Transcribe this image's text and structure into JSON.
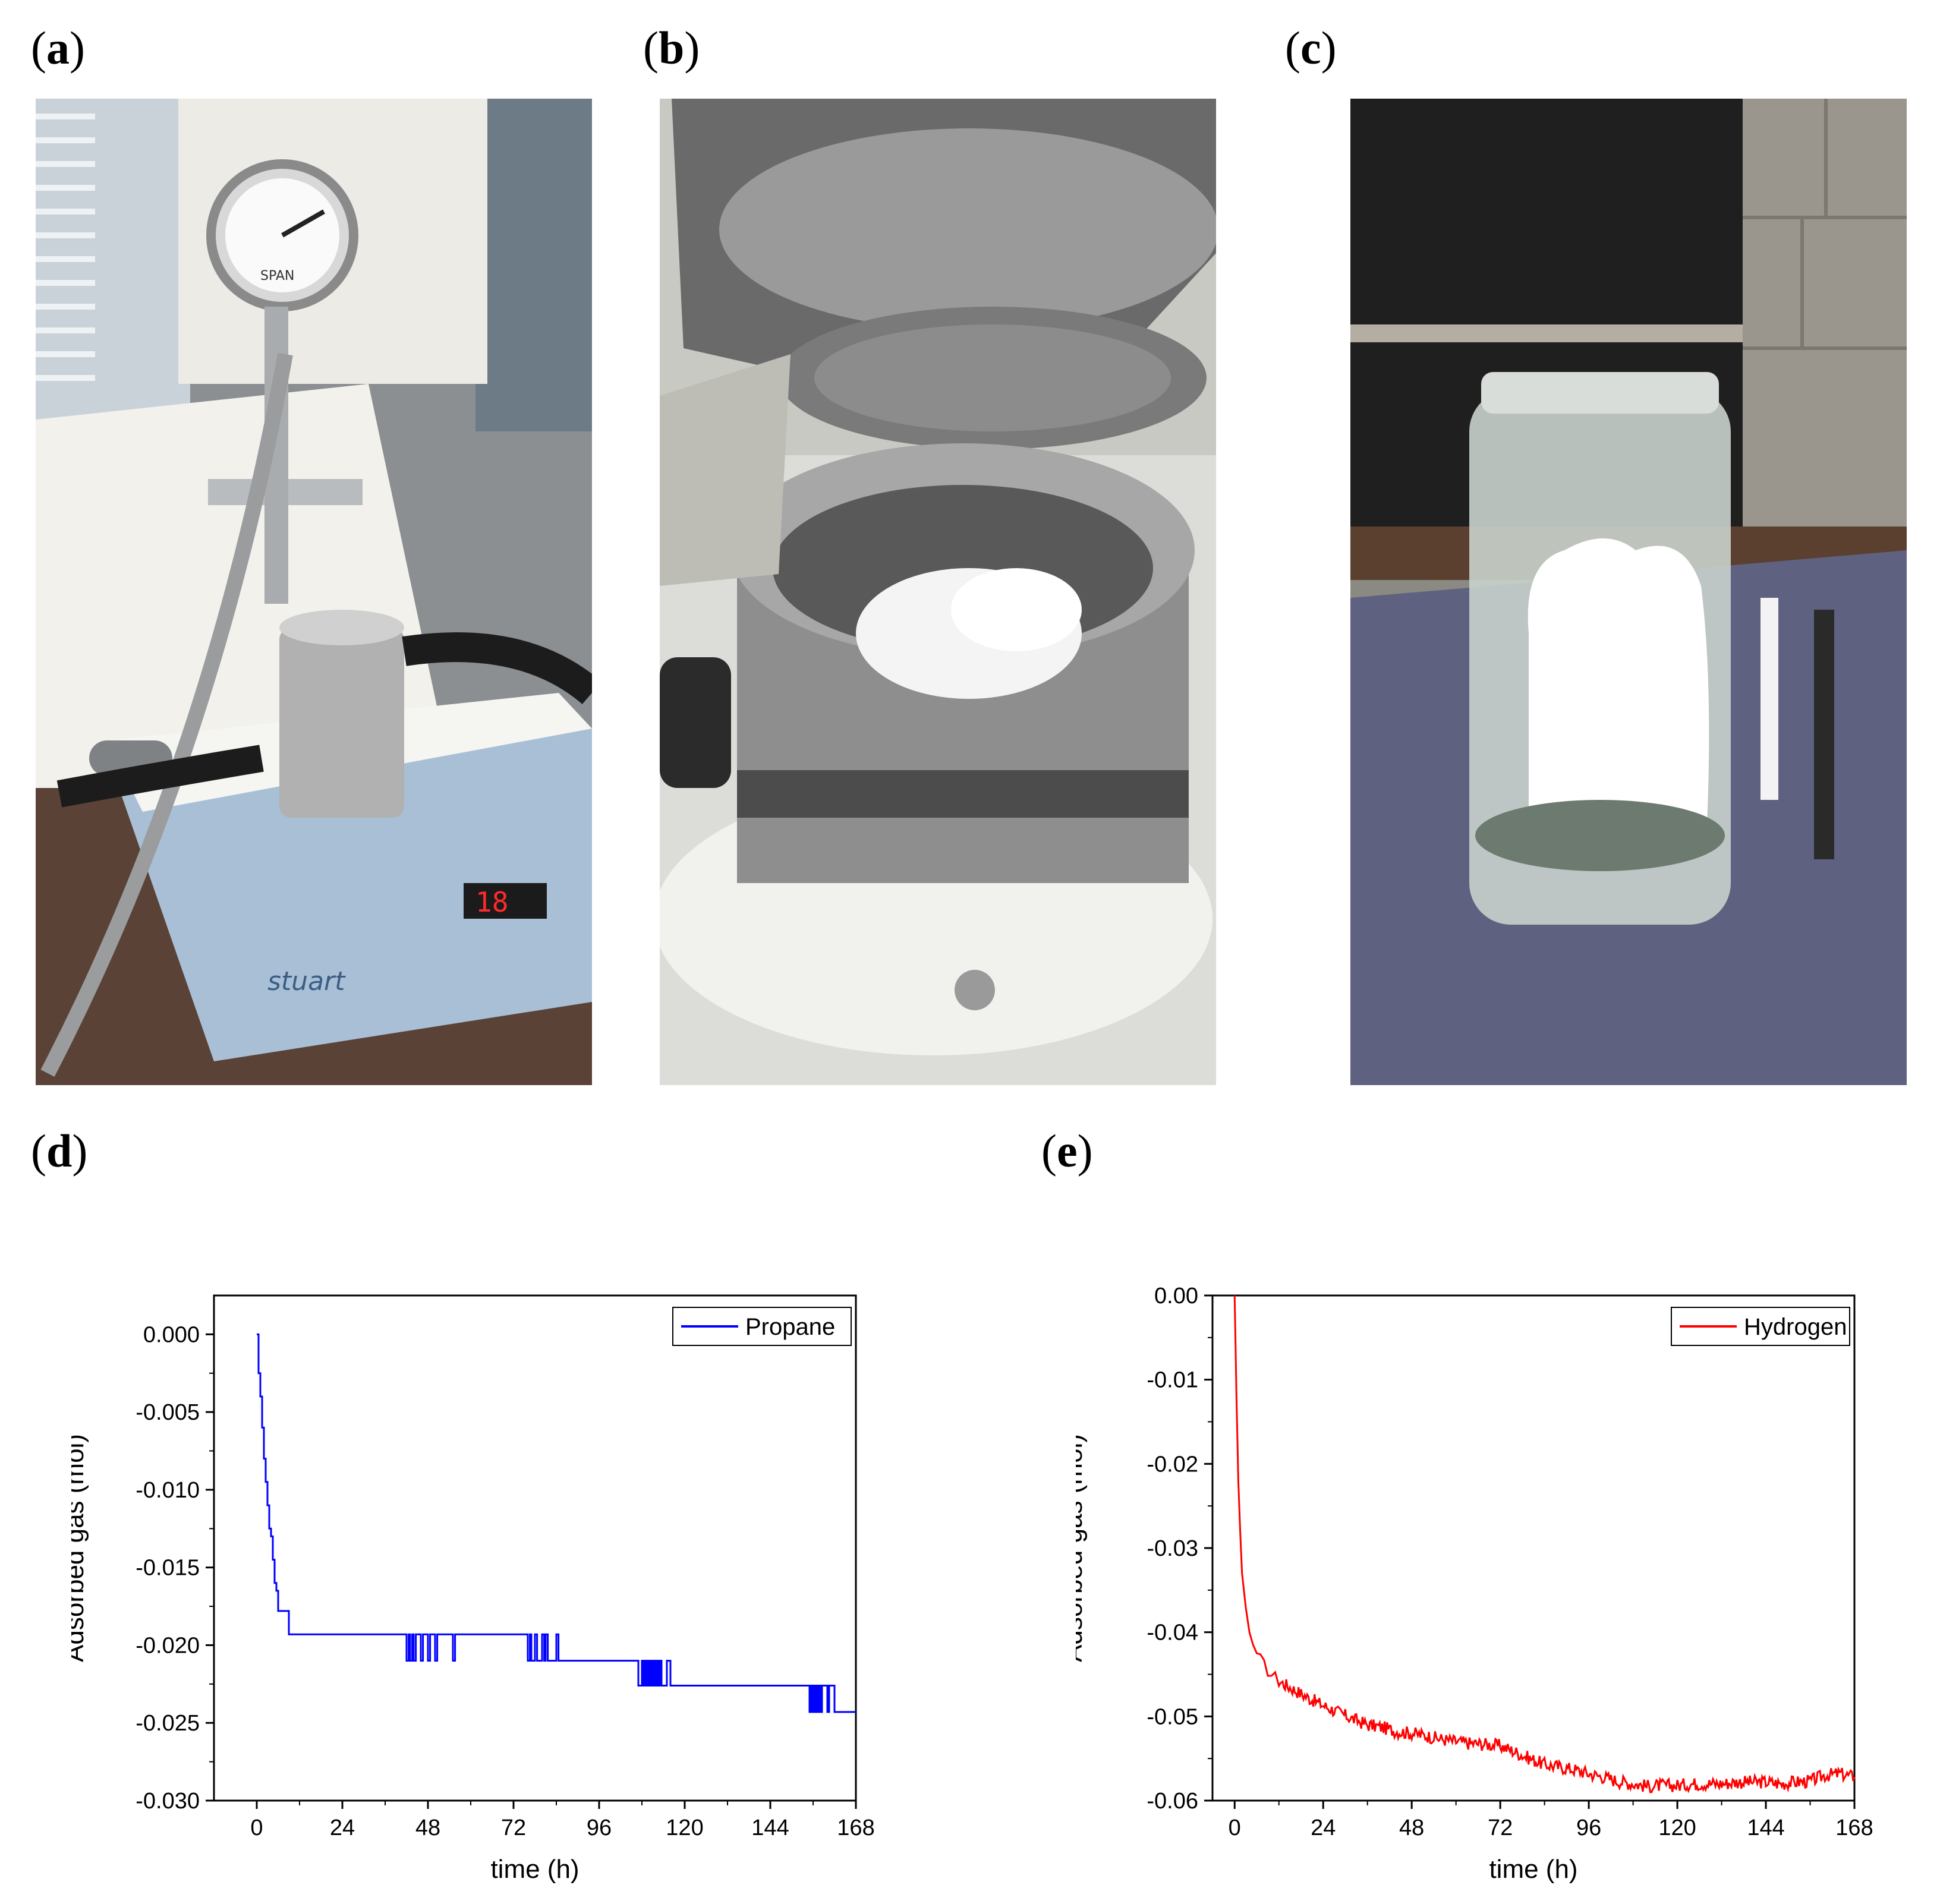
{
  "panels": [
    {
      "id": "a",
      "open": "(",
      "letter": "a",
      "close": ")"
    },
    {
      "id": "b",
      "open": "(",
      "letter": "b",
      "close": ")"
    },
    {
      "id": "c",
      "open": "(",
      "letter": "c",
      "close": ")"
    },
    {
      "id": "d",
      "open": "(",
      "letter": "d",
      "close": ")"
    },
    {
      "id": "e",
      "open": "(",
      "letter": "e",
      "close": ")"
    }
  ],
  "photos": {
    "a": {
      "gauge_brand": "SPAN",
      "device_brand": "stuart",
      "display_value": "18"
    },
    "b": {},
    "c": {}
  },
  "colors": {
    "propane": "#0000ff",
    "hydrogen": "#ff0000",
    "axis": "#000000"
  },
  "chart_data": [
    {
      "type": "line",
      "xlabel": "time (h)",
      "ylabel": "Adsorbed gas (mol)",
      "xlim": [
        -12,
        168
      ],
      "ylim": [
        -0.03,
        0.0025
      ],
      "xticks": [
        0,
        24,
        48,
        72,
        96,
        120,
        144,
        168
      ],
      "xtick_labels": [
        "0",
        "24",
        "48",
        "72",
        "96",
        "120",
        "144",
        "168"
      ],
      "yticks": [
        0,
        -0.005,
        -0.01,
        -0.015,
        -0.02,
        -0.025,
        -0.03
      ],
      "ytick_labels": [
        "0.000",
        "-0.005",
        "-0.010",
        "-0.015",
        "-0.020",
        "-0.025",
        "-0.030"
      ],
      "legend": {
        "position": "top-right"
      },
      "series": [
        {
          "name": "Propane",
          "color": "#0000ff",
          "step": true,
          "x": [
            0,
            0.5,
            1,
            1.5,
            2,
            2.5,
            3,
            3.5,
            4,
            4.5,
            5,
            5.5,
            6,
            7,
            8,
            9,
            10,
            42,
            42.6,
            43,
            43.6,
            44,
            44.6,
            46,
            46.6,
            48,
            48.6,
            50,
            50.6,
            55,
            55.6,
            59,
            76,
            76.6,
            77,
            78,
            78.6,
            80,
            80.6,
            81,
            81.6,
            84,
            84.6,
            86,
            107,
            108,
            108.5,
            109,
            109.5,
            110,
            110.5,
            111,
            111.5,
            112,
            112.5,
            113,
            113.5,
            115,
            116,
            116.5,
            118,
            155,
            155.5,
            156,
            156.5,
            157,
            157.5,
            158,
            158.5,
            160,
            160.5,
            162,
            168
          ],
          "y": [
            0,
            -0.0025,
            -0.004,
            -0.006,
            -0.008,
            -0.0095,
            -0.011,
            -0.0125,
            -0.013,
            -0.0145,
            -0.016,
            -0.0165,
            -0.0178,
            -0.0178,
            -0.0178,
            -0.0193,
            -0.0193,
            -0.021,
            -0.0193,
            -0.021,
            -0.0193,
            -0.021,
            -0.0193,
            -0.021,
            -0.0193,
            -0.021,
            -0.0193,
            -0.021,
            -0.0193,
            -0.021,
            -0.0193,
            -0.0193,
            -0.021,
            -0.0193,
            -0.021,
            -0.0193,
            -0.021,
            -0.0193,
            -0.021,
            -0.0193,
            -0.021,
            -0.0193,
            -0.021,
            -0.021,
            -0.0226,
            -0.021,
            -0.0226,
            -0.021,
            -0.0226,
            -0.021,
            -0.0226,
            -0.021,
            -0.0226,
            -0.021,
            -0.0226,
            -0.021,
            -0.0226,
            -0.021,
            -0.0226,
            -0.0226,
            -0.0226,
            -0.0243,
            -0.0226,
            -0.0243,
            -0.0226,
            -0.0243,
            -0.0226,
            -0.0243,
            -0.0226,
            -0.0243,
            -0.0226,
            -0.0243,
            -0.0243
          ]
        }
      ]
    },
    {
      "type": "line",
      "xlabel": "time (h)",
      "ylabel": "Adsorbed gas (mol)",
      "xlim": [
        -6,
        168
      ],
      "ylim": [
        -0.06,
        0.0
      ],
      "xticks": [
        0,
        24,
        48,
        72,
        96,
        120,
        144,
        168
      ],
      "xtick_labels": [
        "0",
        "24",
        "48",
        "72",
        "96",
        "120",
        "144",
        "168"
      ],
      "yticks": [
        0,
        -0.01,
        -0.02,
        -0.03,
        -0.04,
        -0.05,
        -0.06
      ],
      "ytick_labels": [
        "0.00",
        "-0.01",
        "-0.02",
        "-0.03",
        "-0.04",
        "-0.05",
        "-0.06"
      ],
      "legend": {
        "position": "top-right"
      },
      "series": [
        {
          "name": "Hydrogen",
          "color": "#ff0000",
          "noise": 0.0008,
          "x": [
            0,
            0.5,
            1,
            1.5,
            2,
            3,
            4,
            5,
            6,
            8,
            10,
            12,
            16,
            20,
            24,
            28,
            32,
            36,
            40,
            44,
            48,
            52,
            56,
            60,
            64,
            68,
            72,
            76,
            80,
            84,
            88,
            92,
            96,
            100,
            104,
            108,
            112,
            116,
            120,
            124,
            128,
            132,
            136,
            140,
            144,
            148,
            152,
            156,
            160,
            164,
            168
          ],
          "y": [
            0.0,
            -0.012,
            -0.022,
            -0.028,
            -0.033,
            -0.037,
            -0.04,
            -0.0415,
            -0.0425,
            -0.044,
            -0.045,
            -0.0458,
            -0.0468,
            -0.0478,
            -0.0487,
            -0.0495,
            -0.0503,
            -0.051,
            -0.0513,
            -0.0518,
            -0.052,
            -0.0523,
            -0.0527,
            -0.053,
            -0.0532,
            -0.0533,
            -0.0535,
            -0.0542,
            -0.055,
            -0.0557,
            -0.056,
            -0.0563,
            -0.0568,
            -0.0572,
            -0.0577,
            -0.058,
            -0.0583,
            -0.0582,
            -0.0582,
            -0.058,
            -0.058,
            -0.058,
            -0.0578,
            -0.0578,
            -0.0578,
            -0.058,
            -0.0578,
            -0.0577,
            -0.057,
            -0.0568,
            -0.0572
          ]
        }
      ]
    }
  ]
}
